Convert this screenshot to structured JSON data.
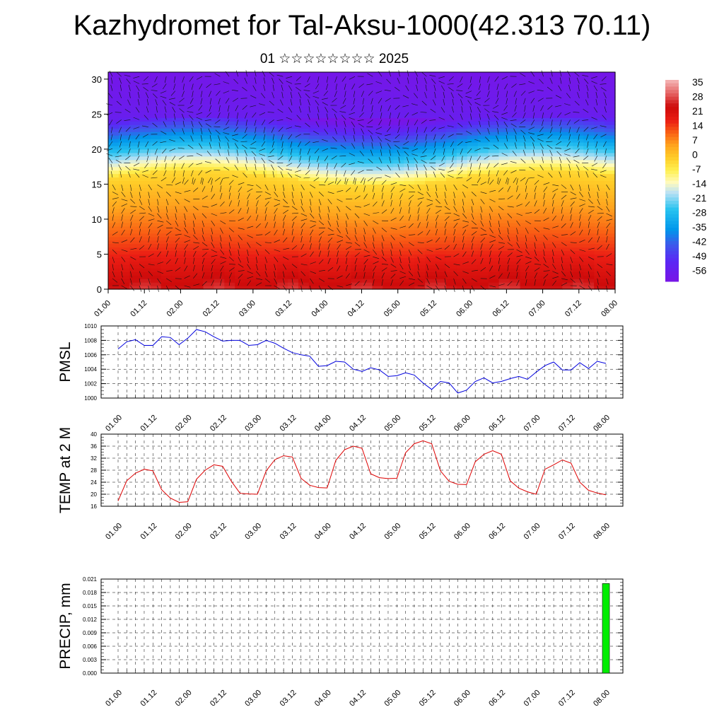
{
  "header": {
    "title": "Kazhydromet for Tal-Aksu-1000(42.313 70.11)",
    "subtitle": "01 ☆☆☆☆☆☆☆☆ 2025"
  },
  "time_labels": [
    "01.00",
    "01.12",
    "02.00",
    "02.12",
    "03.00",
    "03.12",
    "04.00",
    "04.12",
    "05.00",
    "05.12",
    "06.00",
    "06.12",
    "07.00",
    "07.12",
    "08.00"
  ],
  "chart_data": [
    {
      "type": "heatmap",
      "name": "cross-section",
      "x": [
        "01.00",
        "01.12",
        "02.00",
        "02.12",
        "03.00",
        "03.12",
        "04.00",
        "04.12",
        "05.00",
        "05.12",
        "06.00",
        "06.12",
        "07.00",
        "07.12",
        "08.00"
      ],
      "y_ticks": [
        "0",
        "5",
        "10",
        "15",
        "20",
        "25",
        "30"
      ],
      "ylim": [
        0,
        31
      ],
      "colorbar": {
        "labels": [
          "35",
          "28",
          "21",
          "14",
          "7",
          "0",
          "-7",
          "-14",
          "-21",
          "-28",
          "-35",
          "-42",
          "-49",
          "-56"
        ],
        "range": [
          -60,
          38
        ]
      },
      "has_wind_barbs": true
    },
    {
      "type": "line",
      "ylabel": "PMSL",
      "y_ticks": [
        "1010",
        "1008",
        "1006",
        "1004",
        "1002",
        "1000"
      ],
      "ylim": [
        1000,
        1010
      ],
      "color": "#0000dd",
      "values": [
        1006.8,
        1007.8,
        1008.1,
        1007.3,
        1007.3,
        1008.5,
        1008.4,
        1007.4,
        1008.3,
        1009.5,
        1009.2,
        1008.5,
        1007.9,
        1008.0,
        1008.0,
        1007.3,
        1007.4,
        1008.0,
        1007.6,
        1006.9,
        1006.3,
        1006.0,
        1005.8,
        1004.4,
        1004.5,
        1005.1,
        1005.0,
        1004.0,
        1003.7,
        1004.2,
        1003.9,
        1003.0,
        1003.1,
        1003.5,
        1003.2,
        1002.1,
        1001.2,
        1002.3,
        1002.1,
        1000.7,
        1001.1,
        1002.3,
        1002.8,
        1002.1,
        1002.3,
        1002.7,
        1003.0,
        1002.6,
        1003.6,
        1004.5,
        1005.0,
        1003.9,
        1003.9,
        1004.9,
        1004.1,
        1005.1,
        1004.8
      ]
    },
    {
      "type": "line",
      "ylabel": "TEMP at 2 M",
      "y_ticks": [
        "40",
        "36",
        "32",
        "28",
        "24",
        "20",
        "16"
      ],
      "ylim": [
        16,
        40
      ],
      "color": "#dd0000",
      "values": [
        17.8,
        24.5,
        27.0,
        28.3,
        27.8,
        21.5,
        18.7,
        17.3,
        17.5,
        25.0,
        28.0,
        29.8,
        29.3,
        24.3,
        20.3,
        20.1,
        20.0,
        27.8,
        31.5,
        32.8,
        32.4,
        25.3,
        23.0,
        22.2,
        22.1,
        31.3,
        34.8,
        36.0,
        35.3,
        26.8,
        25.5,
        25.2,
        25.3,
        33.8,
        36.8,
        37.8,
        36.8,
        27.8,
        24.3,
        23.3,
        23.2,
        30.8,
        33.3,
        34.5,
        33.3,
        24.5,
        22.0,
        20.8,
        20.0,
        28.3,
        29.8,
        31.4,
        30.3,
        24.0,
        21.3,
        20.4,
        19.8
      ]
    },
    {
      "type": "bar",
      "ylabel": "PRECIP, mm",
      "y_ticks": [
        "0.021",
        "0.018",
        "0.015",
        "0.012",
        "0.009",
        "0.006",
        "0.003",
        "0.000"
      ],
      "ylim": [
        0,
        0.021
      ],
      "color": "#00ee00",
      "bar_index": 56,
      "values": [
        0,
        0,
        0,
        0,
        0,
        0,
        0,
        0,
        0,
        0,
        0,
        0,
        0,
        0,
        0,
        0,
        0,
        0,
        0,
        0,
        0,
        0,
        0,
        0,
        0,
        0,
        0,
        0,
        0,
        0,
        0,
        0,
        0,
        0,
        0,
        0,
        0,
        0,
        0,
        0,
        0,
        0,
        0,
        0,
        0,
        0,
        0,
        0,
        0,
        0,
        0,
        0,
        0,
        0,
        0,
        0,
        0.02
      ]
    }
  ]
}
